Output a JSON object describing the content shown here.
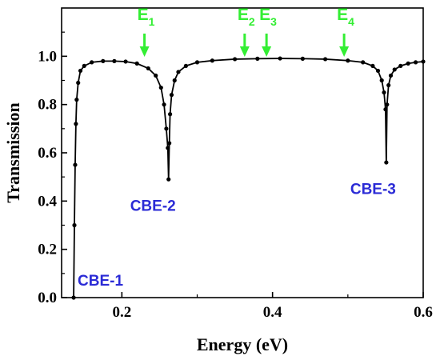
{
  "chart_data": {
    "type": "line",
    "xlabel": "Energy (eV)",
    "ylabel": "Transmission",
    "xlim": [
      0.12,
      0.6
    ],
    "ylim": [
      0.0,
      1.2
    ],
    "xticks": [
      0.2,
      0.4,
      0.6
    ],
    "xtick_labels": [
      "0.2",
      "0.4",
      "0.6"
    ],
    "yticks": [
      0.0,
      0.2,
      0.4,
      0.6,
      0.8,
      1.0
    ],
    "ytick_labels": [
      "0.0",
      "0.2",
      "0.4",
      "0.6",
      "0.8",
      "1.0"
    ],
    "series_color": "#000000",
    "series": [
      {
        "x": [
          0.136,
          0.137,
          0.138,
          0.139,
          0.14,
          0.142,
          0.145,
          0.15,
          0.16,
          0.175,
          0.19,
          0.205,
          0.22,
          0.235,
          0.245,
          0.252,
          0.256,
          0.259,
          0.261,
          0.262,
          0.263,
          0.264,
          0.266,
          0.27,
          0.275,
          0.285,
          0.3,
          0.32,
          0.35,
          0.38,
          0.41,
          0.44,
          0.47,
          0.5,
          0.52,
          0.533,
          0.54,
          0.545,
          0.548,
          0.55,
          0.551,
          0.552,
          0.554,
          0.557,
          0.562,
          0.57,
          0.58,
          0.59,
          0.6
        ],
        "y": [
          0.0,
          0.3,
          0.55,
          0.72,
          0.82,
          0.89,
          0.94,
          0.96,
          0.975,
          0.98,
          0.98,
          0.978,
          0.97,
          0.95,
          0.92,
          0.87,
          0.8,
          0.7,
          0.62,
          0.49,
          0.64,
          0.76,
          0.84,
          0.9,
          0.935,
          0.96,
          0.975,
          0.982,
          0.988,
          0.99,
          0.991,
          0.99,
          0.988,
          0.982,
          0.975,
          0.96,
          0.94,
          0.9,
          0.85,
          0.78,
          0.56,
          0.8,
          0.88,
          0.92,
          0.945,
          0.96,
          0.97,
          0.975,
          0.978
        ]
      }
    ],
    "annotations": [
      {
        "label": "CBE-1",
        "x": 0.137,
        "y": 0.07,
        "color": "#2b2bd6"
      },
      {
        "label": "CBE-2",
        "x": 0.262,
        "y": 0.38,
        "color": "#2b2bd6"
      },
      {
        "label": "CBE-3",
        "x": 0.551,
        "y": 0.45,
        "color": "#2b2bd6"
      }
    ],
    "energy_markers": [
      {
        "letter": "E",
        "sub": "1",
        "x": 0.23,
        "color": "#33ee33"
      },
      {
        "letter": "E",
        "sub": "2",
        "x": 0.363,
        "color": "#33ee33"
      },
      {
        "letter": "E",
        "sub": "3",
        "x": 0.392,
        "color": "#33ee33"
      },
      {
        "letter": "E",
        "sub": "4",
        "x": 0.495,
        "color": "#33ee33"
      }
    ],
    "grid": false,
    "legend": "none"
  }
}
